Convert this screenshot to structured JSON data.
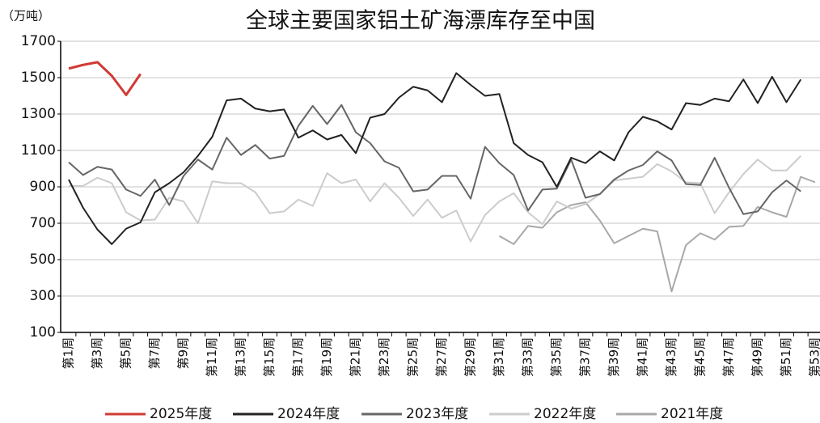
{
  "chart_data": {
    "type": "line",
    "title": "全球主要国家铝土矿海漂库存至中国",
    "y_axis_label": "（万吨）",
    "categories": [
      "第1周",
      null,
      "第3周",
      null,
      "第5周",
      null,
      "第7周",
      null,
      "第9周",
      null,
      "第11周",
      null,
      "第13周",
      null,
      "第15周",
      null,
      "第17周",
      null,
      "第19周",
      null,
      "第21周",
      null,
      "第23周",
      null,
      "第25周",
      null,
      "第27周",
      null,
      "第29周",
      null,
      "第31周",
      null,
      "第33周",
      null,
      "第35周",
      null,
      "第37周",
      null,
      "第39周",
      null,
      "第41周",
      null,
      "第43周",
      null,
      "第45周",
      null,
      "第47周",
      null,
      "第49周",
      null,
      "第51周",
      null,
      "第53周"
    ],
    "ylim": [
      100,
      1700
    ],
    "yticks": [
      100,
      300,
      500,
      700,
      900,
      1100,
      1300,
      1500,
      1700
    ],
    "grid": true,
    "legend": "bottom",
    "series": [
      {
        "name": "2025年度",
        "color": "#d03a35",
        "values": [
          1550,
          1570,
          1585,
          1510,
          1405,
          1520,
          null,
          null,
          null,
          null,
          null,
          null,
          null,
          null,
          null,
          null,
          null,
          null,
          null,
          null,
          null,
          null,
          null,
          null,
          null,
          null,
          null,
          null,
          null,
          null,
          null,
          null,
          null,
          null,
          null,
          null,
          null,
          null,
          null,
          null,
          null,
          null,
          null,
          null,
          null,
          null,
          null,
          null,
          null,
          null,
          null,
          null,
          null
        ]
      },
      {
        "name": "2024年度",
        "color": "#222222",
        "values": [
          940,
          785,
          665,
          585,
          670,
          705,
          870,
          920,
          980,
          1070,
          1175,
          1375,
          1385,
          1330,
          1315,
          1325,
          1170,
          1210,
          1160,
          1185,
          1085,
          1280,
          1300,
          1390,
          1450,
          1430,
          1365,
          1525,
          1460,
          1400,
          1410,
          1140,
          1075,
          1035,
          900,
          1060,
          1030,
          1095,
          1045,
          1200,
          1285,
          1260,
          1215,
          1360,
          1350,
          1385,
          1370,
          1490,
          1360,
          1505,
          1365,
          1490,
          null
        ]
      },
      {
        "name": "2023年度",
        "color": "#666666",
        "values": [
          1035,
          965,
          1010,
          995,
          885,
          850,
          940,
          800,
          960,
          1050,
          995,
          1170,
          1075,
          1130,
          1055,
          1070,
          1235,
          1345,
          1245,
          1350,
          1200,
          1140,
          1040,
          1005,
          875,
          885,
          960,
          960,
          835,
          1120,
          1030,
          965,
          770,
          885,
          890,
          1050,
          840,
          860,
          940,
          990,
          1020,
          1095,
          1045,
          915,
          910,
          1060,
          895,
          750,
          765,
          870,
          935,
          875,
          null
        ]
      },
      {
        "name": "2022年度",
        "color": "#cccccc",
        "values": [
          905,
          905,
          950,
          920,
          760,
          715,
          720,
          840,
          820,
          700,
          930,
          920,
          920,
          870,
          755,
          765,
          830,
          795,
          975,
          920,
          940,
          820,
          920,
          840,
          740,
          830,
          730,
          770,
          600,
          745,
          820,
          865,
          760,
          695,
          820,
          780,
          805,
          860,
          935,
          945,
          955,
          1025,
          985,
          925,
          920,
          755,
          870,
          970,
          1050,
          990,
          990,
          1070,
          null
        ]
      },
      {
        "name": "2021年度",
        "color": "#a8a8a8",
        "values": [
          null,
          null,
          null,
          null,
          null,
          null,
          null,
          null,
          null,
          null,
          null,
          null,
          null,
          null,
          null,
          null,
          null,
          null,
          null,
          null,
          null,
          null,
          null,
          null,
          null,
          null,
          null,
          null,
          null,
          null,
          630,
          585,
          685,
          675,
          760,
          800,
          815,
          715,
          590,
          630,
          670,
          655,
          325,
          580,
          645,
          610,
          680,
          685,
          790,
          760,
          735,
          955,
          925
        ]
      }
    ]
  }
}
